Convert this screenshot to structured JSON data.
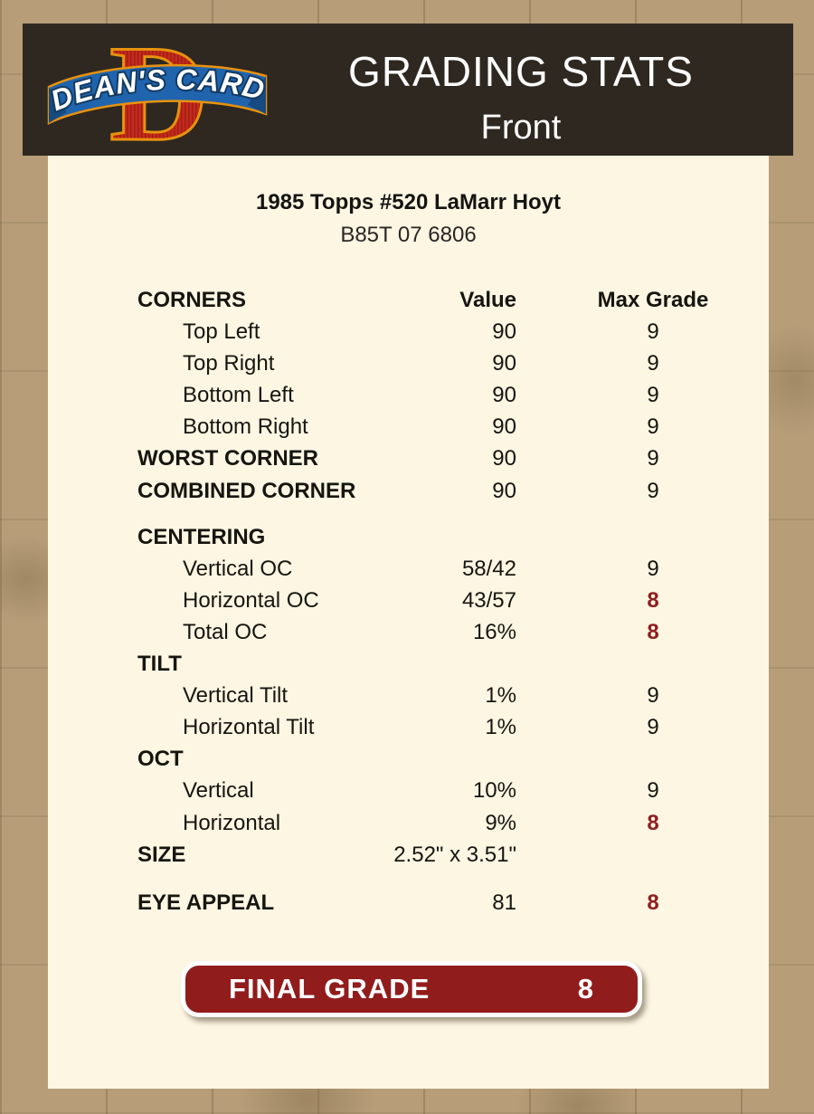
{
  "header": {
    "title": "GRADING STATS",
    "subtitle": "Front",
    "logo_letter": "D",
    "logo_text": "DEAN'S CARDS"
  },
  "card": {
    "title": "1985 Topps #520 LaMarr Hoyt",
    "serial": "B85T 07 6806"
  },
  "table": {
    "columns": {
      "label": "CORNERS",
      "value": "Value",
      "grade": "Max Grade"
    },
    "rows": [
      {
        "label": "Top Left",
        "value": "90",
        "grade": "9",
        "type": "item",
        "red": false
      },
      {
        "label": "Top Right",
        "value": "90",
        "grade": "9",
        "type": "item",
        "red": false
      },
      {
        "label": "Bottom Left",
        "value": "90",
        "grade": "9",
        "type": "item",
        "red": false
      },
      {
        "label": "Bottom Right",
        "value": "90",
        "grade": "9",
        "type": "item",
        "red": false
      },
      {
        "label": "WORST CORNER",
        "value": "90",
        "grade": "9",
        "type": "section",
        "red": false
      },
      {
        "label": "COMBINED CORNER",
        "value": "90",
        "grade": "9",
        "type": "section",
        "red": false
      },
      {
        "label": "CENTERING",
        "value": "",
        "grade": "",
        "type": "section",
        "red": false,
        "gap": 16
      },
      {
        "label": "Vertical OC",
        "value": "58/42",
        "grade": "9",
        "type": "item",
        "red": false
      },
      {
        "label": "Horizontal OC",
        "value": "43/57",
        "grade": "8",
        "type": "item",
        "red": true
      },
      {
        "label": "Total OC",
        "value": "16%",
        "grade": "8",
        "type": "item",
        "red": true
      },
      {
        "label": "TILT",
        "value": "",
        "grade": "",
        "type": "section",
        "red": false
      },
      {
        "label": "Vertical Tilt",
        "value": "1%",
        "grade": "9",
        "type": "item",
        "red": false
      },
      {
        "label": "Horizontal Tilt",
        "value": "1%",
        "grade": "9",
        "type": "item",
        "red": false
      },
      {
        "label": "OCT",
        "value": "",
        "grade": "",
        "type": "section",
        "red": false
      },
      {
        "label": "Vertical",
        "value": "10%",
        "grade": "9",
        "type": "item",
        "red": false
      },
      {
        "label": "Horizontal",
        "value": "9%",
        "grade": "8",
        "type": "item",
        "red": true
      },
      {
        "label": "SIZE",
        "value": "2.52\" x 3.51\"",
        "grade": "",
        "type": "section",
        "red": false
      },
      {
        "label": "EYE APPEAL",
        "value": "81",
        "grade": "8",
        "type": "section",
        "red": true,
        "gap": 18
      }
    ]
  },
  "final_grade": {
    "label": "FINAL GRADE",
    "value": "8"
  },
  "colors": {
    "page_background": "#b29872",
    "panel_background": "#fcf6e3",
    "header_background": "#2e2821",
    "grade_alert_red": "#8e1f20",
    "final_grade_button_red": "#911c1c",
    "logo_red": "#c42a1e",
    "logo_blue": "#1f64ad",
    "logo_gold": "#e8920e"
  }
}
